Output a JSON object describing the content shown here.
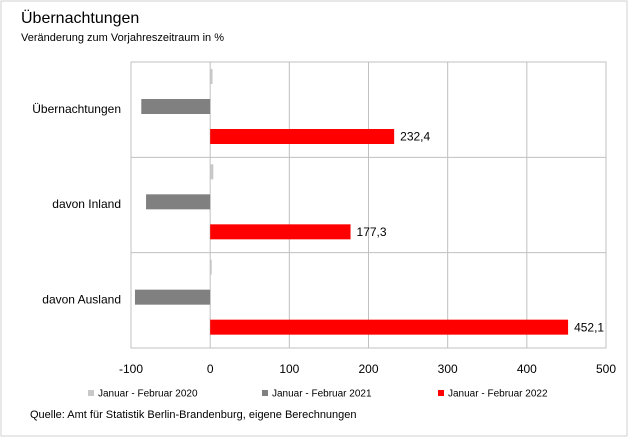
{
  "chart_data": {
    "type": "hbar",
    "title": "Übernachtungen",
    "subtitle": "Veränderung zum Vorjahreszeitraum  in %",
    "categories": [
      "Übernachtungen",
      "davon Inland",
      "davon Ausland"
    ],
    "series": [
      {
        "name": "Januar - Februar 2020",
        "color": "#c8c8c8",
        "values": [
          3,
          4,
          2
        ]
      },
      {
        "name": "Januar - Februar 2021",
        "color": "#808080",
        "values": [
          -87,
          -81,
          -95
        ]
      },
      {
        "name": "Januar - Februar 2022",
        "color": "#ff0000",
        "values": [
          232.4,
          177.3,
          452.1
        ],
        "value_labels": [
          "232,4",
          "177,3",
          "452,1"
        ]
      }
    ],
    "xlim": [
      -100,
      500
    ],
    "xticks": [
      -100,
      0,
      100,
      200,
      300,
      400,
      500
    ],
    "grid": true,
    "legend": "bottom",
    "source": "Quelle: Amt für Statistik Berlin-Brandenburg, eigene Berechnungen"
  }
}
